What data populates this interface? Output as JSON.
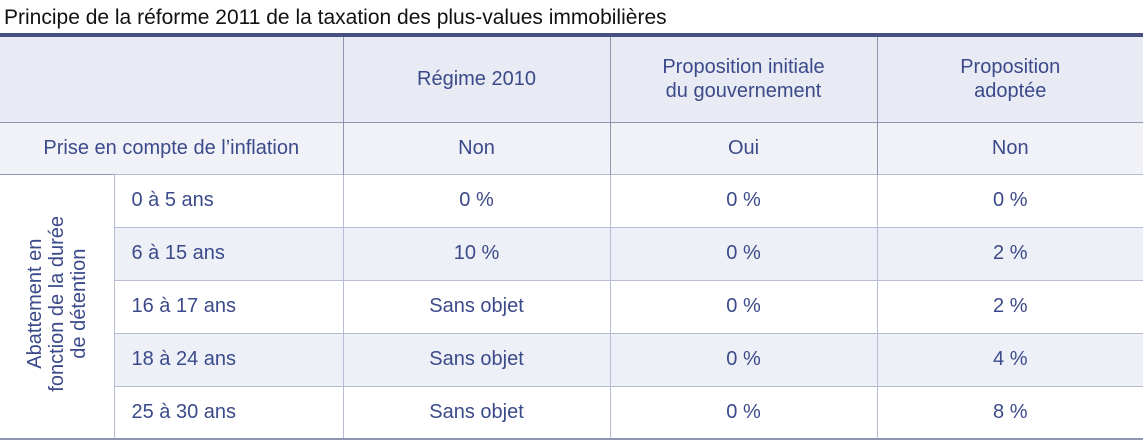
{
  "title": "Principe de la réforme 2011 de la taxation des plus-values immobilières",
  "table": {
    "columns": {
      "regime_2010": "Régime 2010",
      "initial_line1": "Proposition initiale",
      "initial_line2": "du gouvernement",
      "adopted_line1": "Proposition",
      "adopted_line2": "adoptée"
    },
    "inflation_row": {
      "label": "Prise en compte de l’inflation",
      "regime_2010": "Non",
      "initial": "Oui",
      "adopted": "Non"
    },
    "group_label": {
      "line1": "Abattement en",
      "line2": "fonction de la durée",
      "line3": "de détention"
    },
    "rows": [
      {
        "range": "0 à 5 ans",
        "regime_2010": "0 %",
        "initial": "0 %",
        "adopted": "0 %"
      },
      {
        "range": "6 à 15 ans",
        "regime_2010": "10 %",
        "initial": "0 %",
        "adopted": "2 %"
      },
      {
        "range": "16 à 17 ans",
        "regime_2010": "Sans objet",
        "initial": "0 %",
        "adopted": "2 %"
      },
      {
        "range": "18 à 24 ans",
        "regime_2010": "Sans objet",
        "initial": "0 %",
        "adopted": "4 %"
      },
      {
        "range": "25 à 30 ans",
        "regime_2010": "Sans objet",
        "initial": "0 %",
        "adopted": "8 %"
      }
    ]
  },
  "colors": {
    "header_text": "#3b4a8a",
    "rule": "#47507e",
    "header_bg": "#e9ebf4",
    "alt_row_bg": "#eef0f7"
  }
}
